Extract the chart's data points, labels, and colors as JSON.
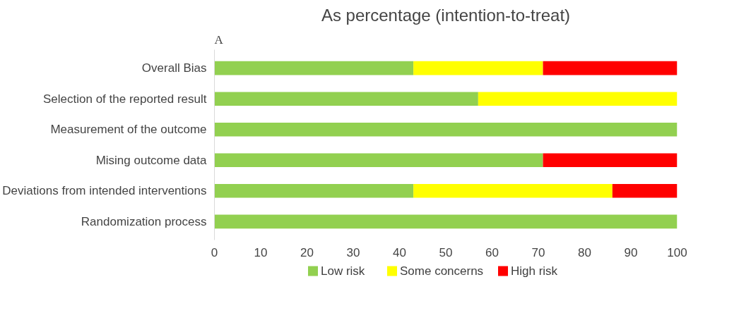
{
  "chart_data": {
    "type": "bar",
    "orientation": "horizontal",
    "stacked": true,
    "title": "As percentage (intention-to-treat)",
    "annotations": [
      "A"
    ],
    "categories": [
      "Overall Bias",
      "Selection of the reported result",
      "Measurement of the outcome",
      "Mising outcome data",
      "Deviations from intended interventions",
      "Randomization process"
    ],
    "series": [
      {
        "name": "Low risk",
        "color": "#92d050",
        "values": [
          43,
          57,
          100,
          71,
          43,
          100
        ]
      },
      {
        "name": "Some concerns",
        "color": "#ffff00",
        "values": [
          28,
          43,
          0,
          0,
          43,
          0
        ]
      },
      {
        "name": "High risk",
        "color": "#ff0000",
        "values": [
          29,
          0,
          0,
          29,
          14,
          0
        ]
      }
    ],
    "xlim": [
      0,
      100
    ],
    "xticks": [
      0,
      10,
      20,
      30,
      40,
      50,
      60,
      70,
      80,
      90,
      100
    ],
    "grid": false,
    "legend": "bottom"
  }
}
